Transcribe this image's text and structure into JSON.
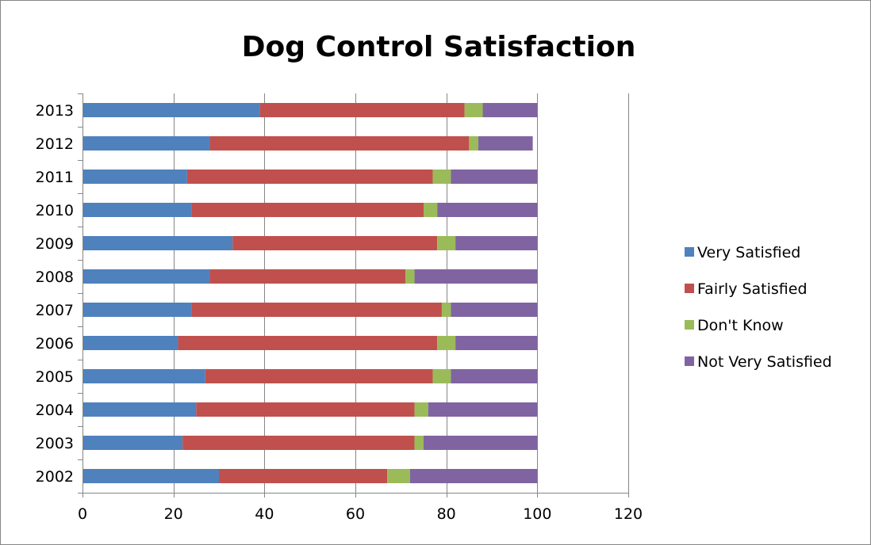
{
  "chart_data": {
    "type": "bar",
    "orientation": "horizontal",
    "stacked": true,
    "title": "Dog Control Satisfaction",
    "xlabel": "",
    "ylabel": "",
    "xlim": [
      0,
      120
    ],
    "x_ticks": [
      0,
      20,
      40,
      60,
      80,
      100,
      120
    ],
    "grid": "vertical",
    "legend_position": "right",
    "categories": [
      "2013",
      "2012",
      "2011",
      "2010",
      "2009",
      "2008",
      "2007",
      "2006",
      "2005",
      "2004",
      "2003",
      "2002"
    ],
    "series": [
      {
        "name": "Very Satisfied",
        "color": "#4F81BD",
        "values": [
          39,
          28,
          23,
          24,
          33,
          28,
          24,
          21,
          27,
          25,
          22,
          30
        ]
      },
      {
        "name": "Fairly Satisfied",
        "color": "#C0504D",
        "values": [
          45,
          57,
          54,
          51,
          45,
          43,
          55,
          57,
          50,
          48,
          51,
          37
        ]
      },
      {
        "name": "Don't Know",
        "color": "#9BBB59",
        "values": [
          4,
          2,
          4,
          3,
          4,
          2,
          2,
          4,
          4,
          3,
          2,
          5
        ]
      },
      {
        "name": "Not Very Satisfied",
        "color": "#8064A2",
        "values": [
          12,
          12,
          19,
          22,
          18,
          27,
          19,
          18,
          19,
          24,
          25,
          28
        ]
      }
    ]
  }
}
